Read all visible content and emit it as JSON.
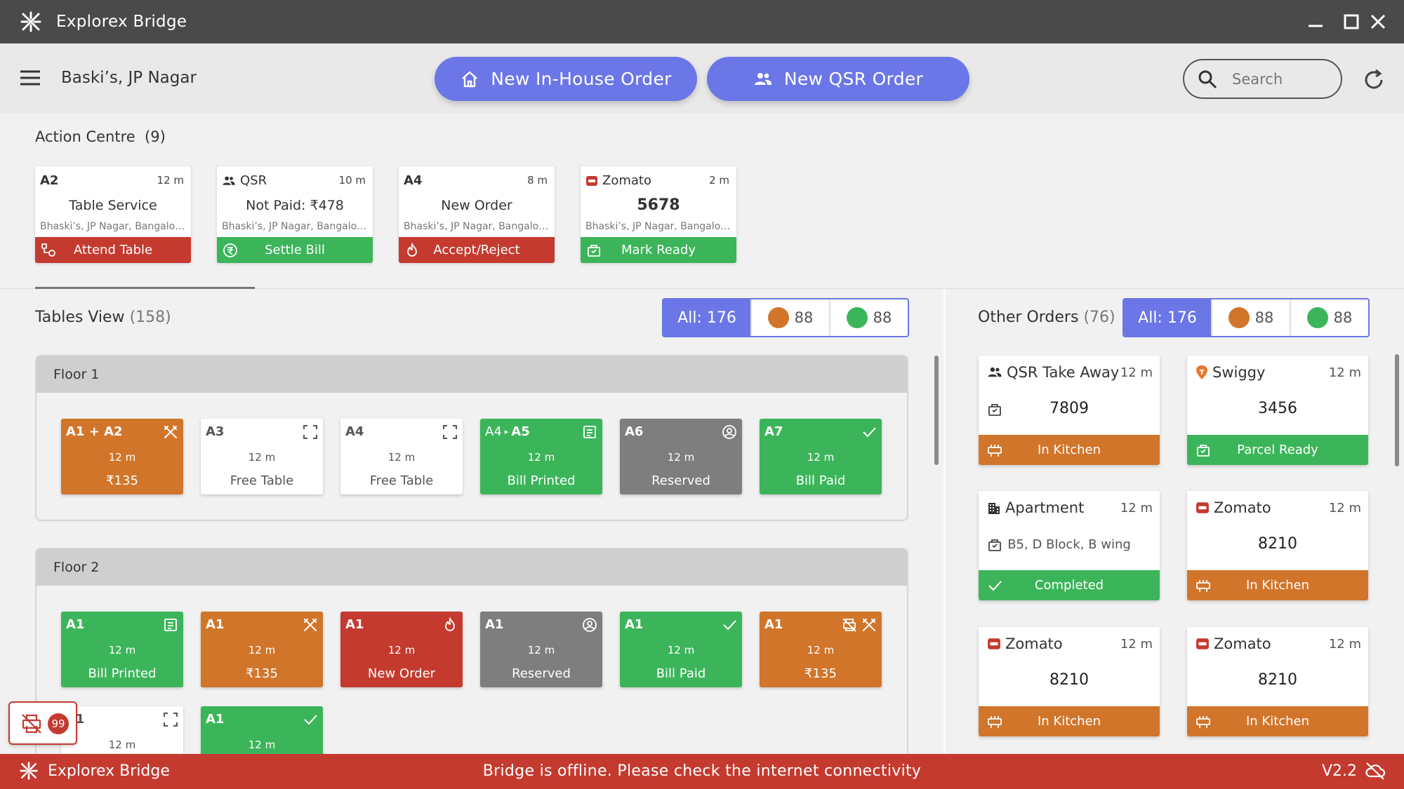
{
  "window": {
    "title": "Explorex Bridge"
  },
  "header": {
    "location": "Baski’s, JP Nagar",
    "new_inhouse_label": "New In-House Order",
    "new_qsr_label": "New QSR Order",
    "search_placeholder": "Search"
  },
  "action_centre": {
    "title": "Action Centre",
    "count": "(9)",
    "cards": [
      {
        "head": "A2",
        "time": "12 m",
        "main": "Table Service",
        "sub": "Bhaski’s, JP Nagar, Bangalore, Karnataka",
        "action": "Attend Table",
        "color": "#c43a2f"
      },
      {
        "head": "QSR",
        "time": "10 m",
        "main": "Not Paid: ₹478",
        "sub": "Bhaski’s, JP Nagar, Bangalore, Karnataka",
        "action": "Settle Bill",
        "color": "#3cb55a"
      },
      {
        "head": "A4",
        "time": "8 m",
        "main": "New Order",
        "sub": "Bhaski’s, JP Nagar, Bangalore, Karnataka",
        "action": "Accept/Reject",
        "color": "#c43a2f"
      },
      {
        "head": "Zomato",
        "time": "2 m",
        "main": "5678",
        "sub": "Bhaski’s, JP Nagar, Bangalore, Karnataka",
        "action": "Mark Ready",
        "color": "#3cb55a"
      }
    ]
  },
  "tables_view": {
    "title": "Tables View",
    "count": "(158)",
    "filter": {
      "all": "All: 176",
      "orange": "88",
      "green": "88"
    },
    "floors": [
      {
        "name": "Floor 1",
        "tables": [
          {
            "name": "A1 + A2",
            "icon": "cutlery-icon",
            "time": "12 m",
            "status": "₹135",
            "style": "orange"
          },
          {
            "name": "A3",
            "icon": "expand-icon",
            "time": "12 m",
            "status": "Free Table",
            "style": "white"
          },
          {
            "name": "A4",
            "icon": "expand-icon",
            "time": "12 m",
            "status": "Free Table",
            "style": "white"
          },
          {
            "name": "A4",
            "name2": "A5",
            "icon": "receipt-icon",
            "time": "12 m",
            "status": "Bill Printed",
            "style": "green"
          },
          {
            "name": "A6",
            "icon": "user-circle-icon",
            "time": "12 m",
            "status": "Reserved",
            "style": "grey"
          },
          {
            "name": "A7",
            "icon": "check-icon",
            "time": "12 m",
            "status": "Bill Paid",
            "style": "green"
          }
        ]
      },
      {
        "name": "Floor 2",
        "tables": [
          {
            "name": "A1",
            "icon": "receipt-icon",
            "time": "12 m",
            "status": "Bill Printed",
            "style": "green"
          },
          {
            "name": "A1",
            "icon": "cutlery-icon",
            "time": "12 m",
            "status": "₹135",
            "style": "orange"
          },
          {
            "name": "A1",
            "icon": "fire-icon",
            "time": "12 m",
            "status": "New Order",
            "style": "red"
          },
          {
            "name": "A1",
            "icon": "user-circle-icon",
            "time": "12 m",
            "status": "Reserved",
            "style": "grey"
          },
          {
            "name": "A1",
            "icon": "check-icon",
            "time": "12 m",
            "status": "Bill Paid",
            "style": "green"
          },
          {
            "name": "A1",
            "icon": "printer-off-icon",
            "time": "12 m",
            "status": "₹135",
            "style": "orange"
          },
          {
            "name": "A1",
            "icon": "expand-icon",
            "time": "12 m",
            "status": "",
            "style": "white"
          },
          {
            "name": "A1",
            "icon": "check-icon",
            "time": "12 m",
            "status": "",
            "style": "green"
          }
        ]
      }
    ]
  },
  "other_orders": {
    "title": "Other Orders",
    "count": "(76)",
    "filter": {
      "all": "All: 176",
      "orange": "88",
      "green": "88"
    },
    "orders": [
      {
        "head": "QSR Take Away",
        "head_icon": "users-icon",
        "time": "12 m",
        "mid": "7809",
        "status": "In Kitchen",
        "style": "orange"
      },
      {
        "head": "Swiggy",
        "head_icon": "swiggy-icon",
        "time": "12 m",
        "mid": "3456",
        "status": "Parcel Ready",
        "style": "green"
      },
      {
        "head": "Apartment",
        "head_icon": "building-icon",
        "time": "12 m",
        "mid": "B5, D Block, B wing",
        "status": "Completed",
        "style": "green"
      },
      {
        "head": "Zomato",
        "head_icon": "zomato-icon",
        "time": "12 m",
        "mid": "8210",
        "status": "In Kitchen",
        "style": "orange"
      },
      {
        "head": "Zomato",
        "head_icon": "zomato-icon",
        "time": "12 m",
        "mid": "8210",
        "status": "In Kitchen",
        "style": "orange"
      },
      {
        "head": "Zomato",
        "head_icon": "zomato-icon",
        "time": "12 m",
        "mid": "8210",
        "status": "In Kitchen",
        "style": "orange"
      }
    ]
  },
  "printer_badge": {
    "count": "99"
  },
  "footer": {
    "app_name": "Explorex Bridge",
    "message": "Bridge is offline. Please check the internet connectivity",
    "version": "V2.2"
  },
  "colors": {
    "accent": "#6b77e6",
    "orange": "#d1752a",
    "green": "#3cb55a",
    "red": "#c43a2f",
    "grey": "#7e7e7e"
  }
}
